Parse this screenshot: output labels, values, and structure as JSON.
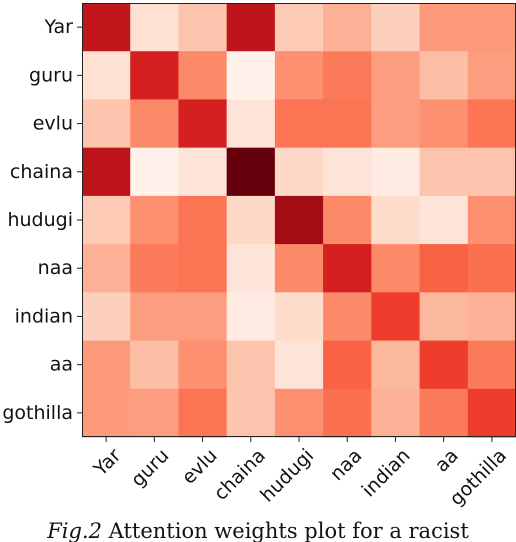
{
  "chart_data": {
    "type": "heatmap",
    "title": "",
    "xlabel": "",
    "ylabel": "",
    "row_labels": [
      "Yar",
      "guru",
      "evlu",
      "chaina",
      "hudugi",
      "naa",
      "indian",
      "aa",
      "gothilla"
    ],
    "col_labels": [
      "Yar",
      "guru",
      "evlu",
      "chaina",
      "hudugi",
      "naa",
      "indian",
      "aa",
      "gothilla"
    ],
    "colormap": "Reds",
    "values": [
      [
        0.78,
        0.12,
        0.22,
        0.8,
        0.2,
        0.28,
        0.18,
        0.35,
        0.35
      ],
      [
        0.12,
        0.72,
        0.4,
        0.02,
        0.38,
        0.45,
        0.34,
        0.24,
        0.34
      ],
      [
        0.22,
        0.4,
        0.72,
        0.1,
        0.47,
        0.47,
        0.34,
        0.38,
        0.47
      ],
      [
        0.8,
        0.02,
        0.1,
        1.0,
        0.15,
        0.1,
        0.06,
        0.22,
        0.22
      ],
      [
        0.2,
        0.38,
        0.47,
        0.15,
        0.88,
        0.4,
        0.14,
        0.1,
        0.38
      ],
      [
        0.28,
        0.45,
        0.47,
        0.1,
        0.4,
        0.72,
        0.4,
        0.52,
        0.48
      ],
      [
        0.18,
        0.34,
        0.34,
        0.06,
        0.14,
        0.4,
        0.62,
        0.26,
        0.28
      ],
      [
        0.35,
        0.24,
        0.38,
        0.22,
        0.1,
        0.52,
        0.26,
        0.62,
        0.45
      ],
      [
        0.35,
        0.34,
        0.47,
        0.22,
        0.38,
        0.48,
        0.28,
        0.45,
        0.62
      ]
    ]
  },
  "caption": {
    "fig_label": "Fig.2",
    "text": " Attention weights plot for a racist"
  }
}
